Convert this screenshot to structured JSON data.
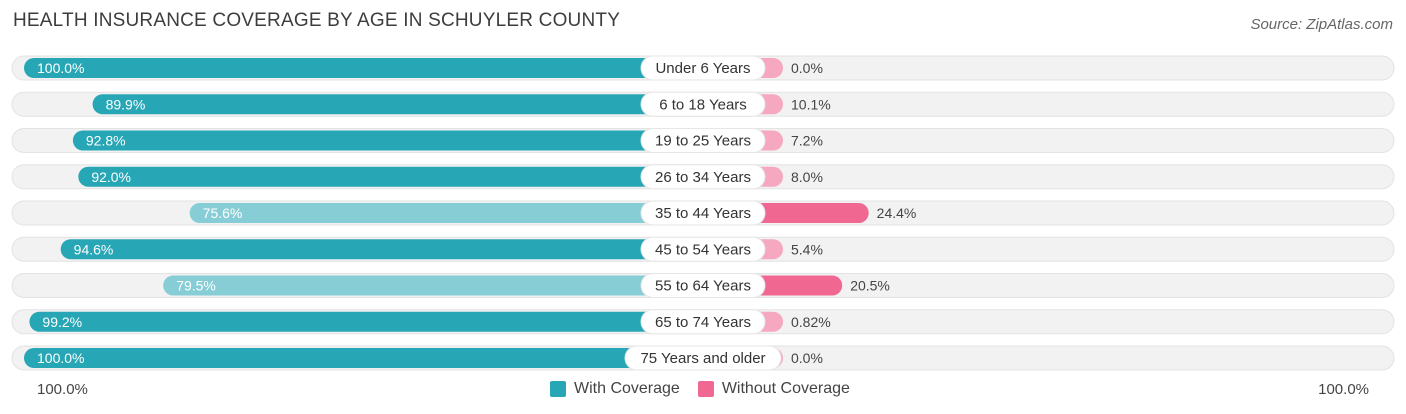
{
  "title": "HEALTH INSURANCE COVERAGE BY AGE IN SCHUYLER COUNTY",
  "source": "Source: ZipAtlas.com",
  "colors": {
    "with_strong": "#27a6b5",
    "with_light": "#86cdd5",
    "without_strong": "#f06892",
    "without_light": "#f5a8c0",
    "track": "#f0f0f0"
  },
  "axis": {
    "left_label": "100.0%",
    "right_label": "100.0%"
  },
  "legend": {
    "with": "With Coverage",
    "without": "Without Coverage"
  },
  "chart_data": {
    "type": "bar",
    "orientation": "horizontal-diverging",
    "title": "HEALTH INSURANCE COVERAGE BY AGE IN SCHUYLER COUNTY",
    "categories": [
      "Under 6 Years",
      "6 to 18 Years",
      "19 to 25 Years",
      "26 to 34 Years",
      "35 to 44 Years",
      "45 to 54 Years",
      "55 to 64 Years",
      "65 to 74 Years",
      "75 Years and older"
    ],
    "series": [
      {
        "name": "With Coverage",
        "values": [
          100.0,
          89.9,
          92.8,
          92.0,
          75.6,
          94.6,
          79.5,
          99.2,
          100.0
        ],
        "labels": [
          "100.0%",
          "89.9%",
          "92.8%",
          "92.0%",
          "75.6%",
          "94.6%",
          "79.5%",
          "99.2%",
          "100.0%"
        ]
      },
      {
        "name": "Without Coverage",
        "values": [
          0.0,
          10.1,
          7.2,
          8.0,
          24.4,
          5.4,
          20.5,
          0.82,
          0.0
        ],
        "labels": [
          "0.0%",
          "10.1%",
          "7.2%",
          "8.0%",
          "24.4%",
          "5.4%",
          "20.5%",
          "0.82%",
          "0.0%"
        ]
      }
    ],
    "xlim": [
      0,
      100
    ],
    "legend_position": "bottom-center"
  }
}
